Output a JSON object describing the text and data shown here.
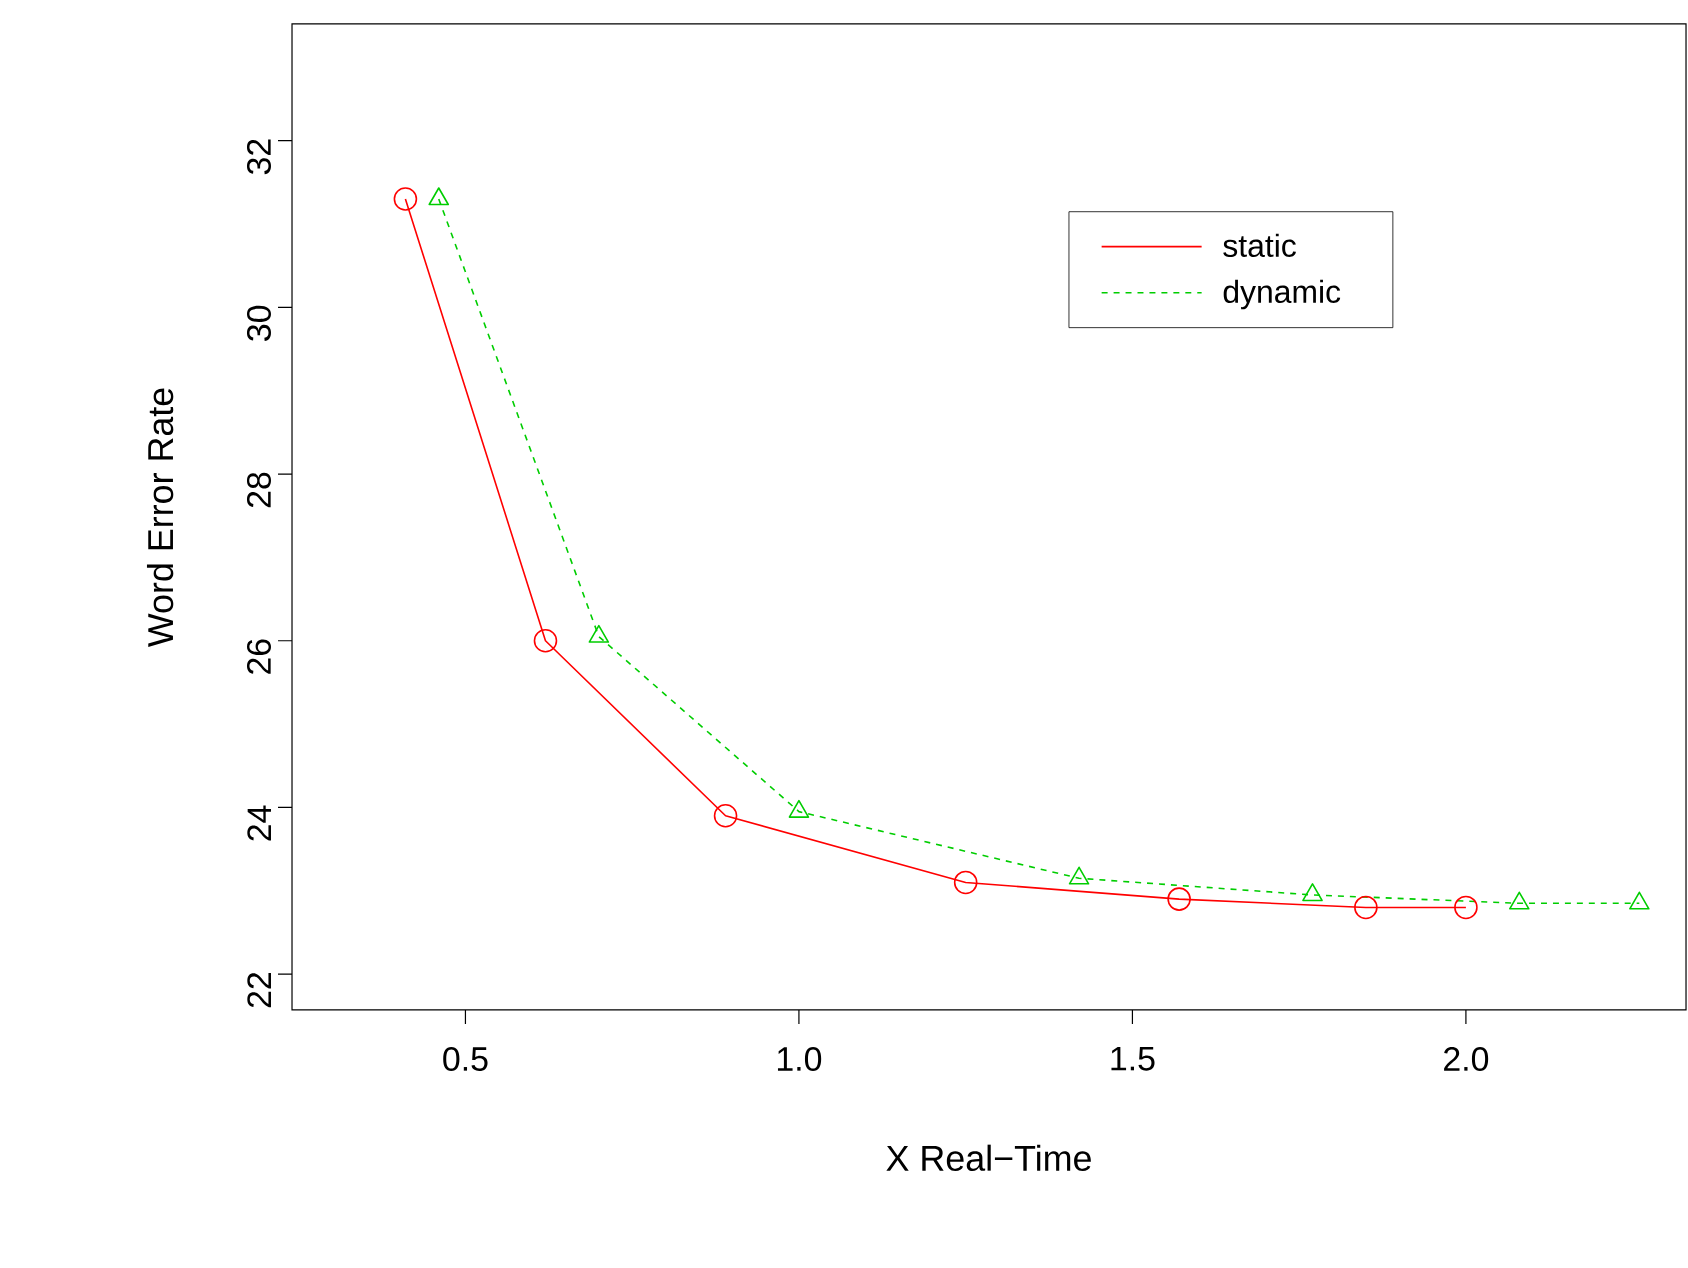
{
  "chart_data": {
    "type": "line",
    "xlabel": "X Real−Time",
    "ylabel": "Word Error Rate",
    "series": [
      {
        "name": "static",
        "color": "#ff0000",
        "marker": "circle",
        "line_style": "solid",
        "x": [
          0.41,
          0.62,
          0.89,
          1.25,
          1.57,
          1.85,
          2.0
        ],
        "values": [
          31.3,
          26.0,
          23.9,
          23.1,
          22.9,
          22.8,
          22.8
        ]
      },
      {
        "name": "dynamic",
        "color": "#00cd00",
        "marker": "triangle",
        "line_style": "dashed",
        "x": [
          0.46,
          0.7,
          1.0,
          1.42,
          1.77,
          2.08,
          2.26
        ],
        "values": [
          31.3,
          26.05,
          23.95,
          23.15,
          22.95,
          22.85,
          22.85
        ]
      }
    ],
    "xlim": [
      0.24,
      2.33
    ],
    "ylim": [
      21.57,
      33.4
    ],
    "xticks": [
      0.5,
      {
        "value": 1.0,
        "label": "1.0"
      },
      1.5,
      {
        "value": 2.0,
        "label": "2.0"
      }
    ],
    "yticks": [
      22,
      24,
      26,
      28,
      30,
      32
    ],
    "legend": "top right",
    "grid": false
  }
}
